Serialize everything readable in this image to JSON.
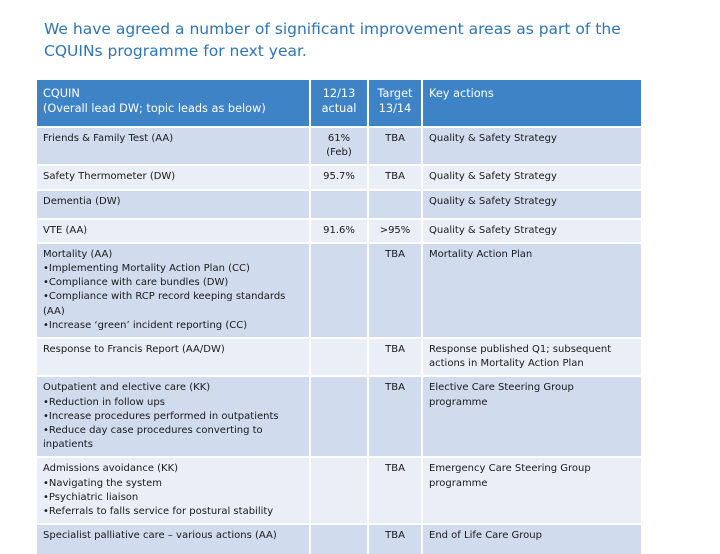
{
  "slide": {
    "title": "We have agreed a number of significant improvement areas as part of the CQUINs programme for next year."
  },
  "table": {
    "headers": {
      "cquin_line1": "CQUIN",
      "cquin_line2": "(Overall lead DW; topic leads as below)",
      "actual_line1": "12/13",
      "actual_line2": "actual",
      "target_line1": "Target",
      "target_line2": "13/14",
      "actions": "Key actions"
    },
    "rows": [
      {
        "cquin": [
          "Friends & Family Test (AA)"
        ],
        "actual": [
          "61%",
          "(Feb)"
        ],
        "target": "TBA",
        "actions": [
          "Quality & Safety Strategy"
        ]
      },
      {
        "cquin": [
          "Safety Thermometer (DW)"
        ],
        "actual": [
          "95.7%"
        ],
        "target": "TBA",
        "actions": [
          "Quality & Safety Strategy"
        ]
      },
      {
        "cquin": [
          "Dementia (DW)"
        ],
        "actual": [],
        "target": "",
        "actions": [
          "Quality & Safety Strategy"
        ]
      },
      {
        "cquin": [
          "VTE (AA)"
        ],
        "actual": [
          "91.6%"
        ],
        "target": ">95%",
        "actions": [
          "Quality & Safety Strategy"
        ]
      },
      {
        "cquin": [
          "Mortality (AA)",
          "•Implementing Mortality Action Plan (CC)",
          "•Compliance with care bundles (DW)",
          "•Compliance with RCP record keeping standards (AA)",
          "•Increase ‘green’ incident reporting (CC)"
        ],
        "actual": [],
        "target": "TBA",
        "actions": [
          "Mortality Action Plan"
        ]
      },
      {
        "cquin": [
          "Response to Francis Report (AA/DW)"
        ],
        "actual": [],
        "target": "TBA",
        "actions": [
          "Response published Q1; subsequent",
          "actions in Mortality Action Plan"
        ]
      },
      {
        "cquin": [
          "Outpatient and elective care (KK)",
          "•Reduction in follow ups",
          "•Increase procedures performed in outpatients",
          "•Reduce day case procedures converting to inpatients"
        ],
        "actual": [],
        "target": "TBA",
        "actions": [
          "Elective Care Steering Group programme"
        ]
      },
      {
        "cquin": [
          "Admissions avoidance (KK)",
          "•Navigating the system",
          "•Psychiatric liaison",
          "•Referrals to falls service for postural stability"
        ],
        "actual": [],
        "target": "TBA",
        "actions": [
          "Emergency Care Steering Group",
          "programme"
        ]
      },
      {
        "cquin": [
          "Specialist palliative care – various actions (AA)"
        ],
        "actual": [],
        "target": "TBA",
        "actions": [
          "End of Life Care Group"
        ]
      }
    ]
  }
}
